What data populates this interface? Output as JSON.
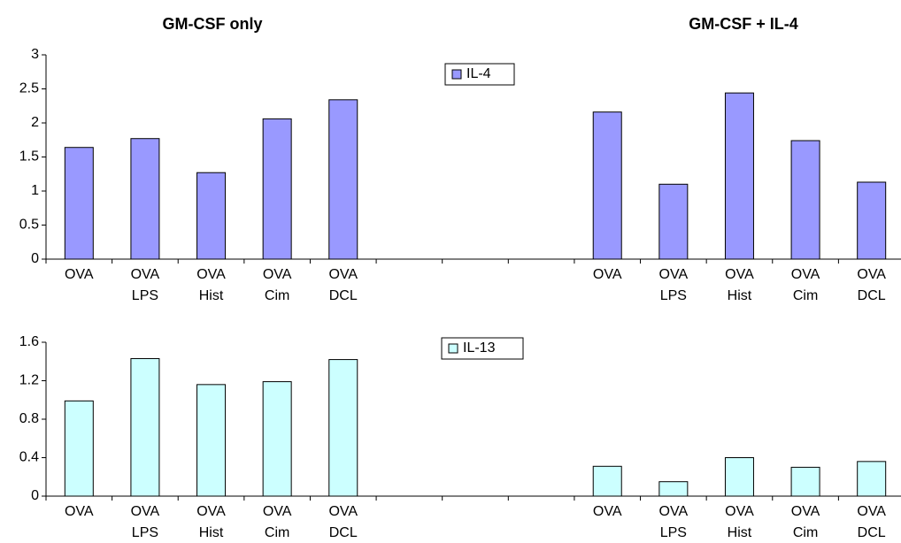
{
  "group_titles": [
    "GM-CSF only",
    "GM-CSF + IL-4"
  ],
  "chart_data": [
    {
      "type": "bar",
      "categories": [
        "OVA",
        "OVA LPS",
        "OVA Hist",
        "OVA Cim",
        "OVA DCL",
        null,
        null,
        null,
        "OVA",
        "OVA LPS",
        "OVA Hist",
        "OVA Cim",
        "OVA DCL"
      ],
      "series": [
        {
          "name": "IL-4",
          "color": "#9999ff",
          "values": [
            1.64,
            1.77,
            1.27,
            2.06,
            2.34,
            null,
            null,
            null,
            2.16,
            1.1,
            2.44,
            1.74,
            1.13
          ]
        }
      ],
      "ylim": [
        0,
        3
      ],
      "yticks": [
        0,
        0.5,
        1,
        1.5,
        2,
        2.5,
        3
      ]
    },
    {
      "type": "bar",
      "categories": [
        "OVA",
        "OVA LPS",
        "OVA Hist",
        "OVA Cim",
        "OVA DCL",
        null,
        null,
        null,
        "OVA",
        "OVA LPS",
        "OVA Hist",
        "OVA Cim",
        "OVA DCL"
      ],
      "series": [
        {
          "name": "IL-13",
          "color": "#ccffff",
          "values": [
            0.99,
            1.43,
            1.16,
            1.19,
            1.42,
            null,
            null,
            null,
            0.31,
            0.15,
            0.4,
            0.3,
            0.36
          ]
        }
      ],
      "ylim": [
        0,
        1.6
      ],
      "yticks": [
        0,
        0.4,
        0.8,
        1.2,
        1.6
      ]
    }
  ]
}
